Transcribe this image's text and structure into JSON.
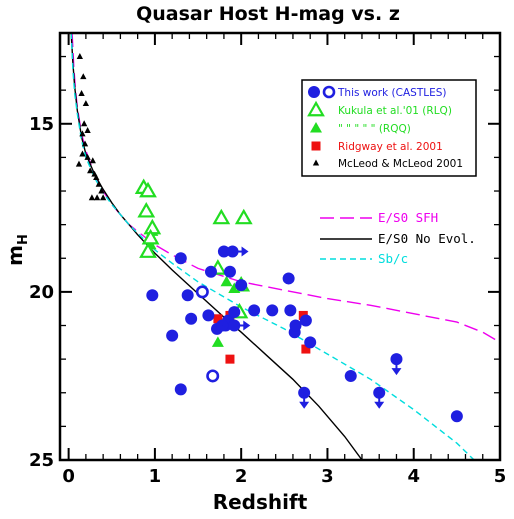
{
  "colors": {
    "castles": "#1f1fe0",
    "kukula": "#22dd22",
    "ridgway": "#ee1111",
    "mcleod": "#000000",
    "es0_sfh": "#ee00ee",
    "es0_noevol": "#000000",
    "sbc": "#00dddd"
  },
  "chart_data": {
    "type": "scatter",
    "title": "Quasar Host H-mag vs. z",
    "xlabel": "Redshift",
    "ylabel_main": "m",
    "ylabel_sub": "H",
    "xlim": [
      -0.1,
      5.0
    ],
    "ylim": [
      12.3,
      25.0
    ],
    "y_inverted": true,
    "x_ticks": [
      "0",
      "1",
      "2",
      "3",
      "4",
      "5"
    ],
    "y_ticks": [
      "15",
      "20",
      "25"
    ],
    "legend": {
      "placement": "top-right",
      "entries": [
        {
          "label": "This work (CASTLES)",
          "marker": "circle-pair",
          "color": "castles"
        },
        {
          "label": "Kukula et al.'01 (RLQ)",
          "marker": "open-triangle",
          "color": "kukula"
        },
        {
          "label": "\"   \"   \"   \"   \" (RQQ)",
          "marker": "filled-triangle",
          "color": "kukula"
        },
        {
          "label": "Ridgway et al. 2001",
          "marker": "square",
          "color": "ridgway"
        },
        {
          "label": "McLeod & McLeod 2001",
          "marker": "small-triangle",
          "color": "mcleod"
        }
      ]
    },
    "curve_legend": [
      {
        "label": "E/S0 SFH",
        "color": "es0_sfh",
        "style": "long-dash"
      },
      {
        "label": "E/S0 No Evol.",
        "color": "es0_noevol",
        "style": "solid"
      },
      {
        "label": "Sb/c",
        "color": "sbc",
        "style": "dash"
      }
    ],
    "curves": [
      {
        "name": "E/S0 SFH",
        "color": "es0_sfh",
        "style": "long-dash",
        "x": [
          0.04,
          0.06,
          0.08,
          0.1,
          0.15,
          0.2,
          0.3,
          0.4,
          0.5,
          0.6,
          0.7,
          0.8,
          1.0,
          1.2,
          1.5,
          2.0,
          2.5,
          3.0,
          3.5,
          4.0,
          4.5,
          4.8,
          5.0
        ],
        "y": [
          12.3,
          13.3,
          14.0,
          14.5,
          15.3,
          15.8,
          16.5,
          17.0,
          17.4,
          17.7,
          18.0,
          18.2,
          18.6,
          18.9,
          19.3,
          19.7,
          19.95,
          20.2,
          20.4,
          20.65,
          20.9,
          21.2,
          21.5
        ]
      },
      {
        "name": "E/S0 No Evol.",
        "color": "es0_noevol",
        "style": "solid",
        "x": [
          0.03,
          0.05,
          0.07,
          0.1,
          0.15,
          0.2,
          0.3,
          0.4,
          0.5,
          0.6,
          0.7,
          0.8,
          1.0,
          1.2,
          1.5,
          1.8,
          2.0,
          2.3,
          2.6,
          2.9,
          3.2,
          3.4
        ],
        "y": [
          12.3,
          13.2,
          13.9,
          14.6,
          15.4,
          15.9,
          16.5,
          16.95,
          17.35,
          17.7,
          18.0,
          18.3,
          18.85,
          19.35,
          20.05,
          20.75,
          21.2,
          21.9,
          22.6,
          23.4,
          24.3,
          25.0
        ]
      },
      {
        "name": "Sb/c",
        "color": "sbc",
        "style": "dash",
        "x": [
          0.03,
          0.05,
          0.07,
          0.1,
          0.15,
          0.2,
          0.3,
          0.4,
          0.5,
          0.6,
          0.7,
          0.8,
          1.0,
          1.2,
          1.5,
          2.0,
          2.5,
          3.0,
          3.5,
          4.0,
          4.5,
          4.7
        ],
        "y": [
          12.3,
          13.4,
          14.1,
          14.7,
          15.5,
          16.0,
          16.6,
          17.05,
          17.4,
          17.7,
          18.0,
          18.25,
          18.75,
          19.15,
          19.7,
          20.45,
          21.1,
          21.85,
          22.6,
          23.5,
          24.5,
          25.0
        ]
      }
    ],
    "series": [
      {
        "name": "This work (CASTLES)",
        "marker": "filled-circle",
        "color": "castles",
        "points": [
          [
            0.97,
            20.1
          ],
          [
            1.2,
            21.3
          ],
          [
            1.3,
            19.0
          ],
          [
            1.3,
            22.9
          ],
          [
            1.38,
            20.1
          ],
          [
            1.42,
            20.8
          ],
          [
            1.55,
            20.0
          ],
          [
            1.62,
            20.7
          ],
          [
            1.65,
            19.4
          ],
          [
            1.72,
            21.1
          ],
          [
            1.82,
            21.0
          ],
          [
            1.85,
            20.85
          ],
          [
            1.8,
            18.8
          ],
          [
            1.87,
            19.4
          ],
          [
            1.92,
            20.6
          ],
          [
            2.0,
            19.8
          ],
          [
            2.15,
            20.55
          ],
          [
            2.36,
            20.55
          ],
          [
            2.55,
            19.6
          ],
          [
            2.57,
            20.55
          ],
          [
            2.62,
            21.2
          ],
          [
            2.63,
            21.0
          ],
          [
            2.75,
            20.85
          ],
          [
            2.8,
            21.5
          ],
          [
            3.27,
            22.5
          ],
          [
            4.5,
            23.7
          ]
        ]
      },
      {
        "name": "This work (CASTLES)",
        "marker": "open-circle",
        "color": "castles",
        "points": [
          [
            1.55,
            20.0
          ],
          [
            1.67,
            22.5
          ]
        ]
      },
      {
        "name": "This work (CASTLES) limits",
        "marker": "right-arrow",
        "color": "castles",
        "points": [
          [
            1.78,
            21.0
          ],
          [
            1.9,
            18.8
          ],
          [
            1.92,
            21.0
          ]
        ]
      },
      {
        "name": "This work (CASTLES) limits",
        "marker": "down-arrow",
        "color": "castles",
        "points": [
          [
            2.73,
            23.0
          ],
          [
            3.6,
            23.0
          ],
          [
            3.8,
            22.0
          ]
        ]
      },
      {
        "name": "Kukula et al.'01 (RLQ)",
        "marker": "open-triangle",
        "color": "kukula",
        "points": [
          [
            0.87,
            16.9
          ],
          [
            0.92,
            17.0
          ],
          [
            0.9,
            17.6
          ],
          [
            0.97,
            18.1
          ],
          [
            0.95,
            18.4
          ],
          [
            0.92,
            18.8
          ],
          [
            1.73,
            19.3
          ],
          [
            1.77,
            17.8
          ],
          [
            1.98,
            20.6
          ],
          [
            2.0,
            19.8
          ],
          [
            2.03,
            17.8
          ]
        ]
      },
      {
        "name": "Kukula et al.'01 (RQQ)",
        "marker": "filled-triangle",
        "color": "kukula",
        "points": [
          [
            0.97,
            18.2
          ],
          [
            0.95,
            18.6
          ],
          [
            1.73,
            21.5
          ],
          [
            1.83,
            19.7
          ],
          [
            1.92,
            19.9
          ],
          [
            2.0,
            20.6
          ],
          [
            1.95,
            20.6
          ]
        ]
      },
      {
        "name": "Ridgway et al. 2001",
        "marker": "square",
        "color": "ridgway",
        "points": [
          [
            1.73,
            20.8
          ],
          [
            1.87,
            20.7
          ],
          [
            1.87,
            22.0
          ],
          [
            2.72,
            20.7
          ],
          [
            2.75,
            21.7
          ]
        ]
      },
      {
        "name": "McLeod & McLeod 2001",
        "marker": "small-triangle",
        "color": "mcleod",
        "points": [
          [
            0.13,
            13.0
          ],
          [
            0.17,
            13.6
          ],
          [
            0.15,
            14.1
          ],
          [
            0.2,
            14.4
          ],
          [
            0.18,
            15.0
          ],
          [
            0.16,
            15.3
          ],
          [
            0.22,
            15.2
          ],
          [
            0.19,
            15.6
          ],
          [
            0.16,
            15.9
          ],
          [
            0.22,
            16.0
          ],
          [
            0.28,
            16.1
          ],
          [
            0.25,
            16.4
          ],
          [
            0.3,
            16.5
          ],
          [
            0.32,
            16.6
          ],
          [
            0.35,
            16.8
          ],
          [
            0.38,
            17.0
          ],
          [
            0.27,
            17.2
          ],
          [
            0.33,
            17.2
          ],
          [
            0.4,
            17.2
          ],
          [
            0.12,
            16.2
          ]
        ]
      }
    ]
  }
}
